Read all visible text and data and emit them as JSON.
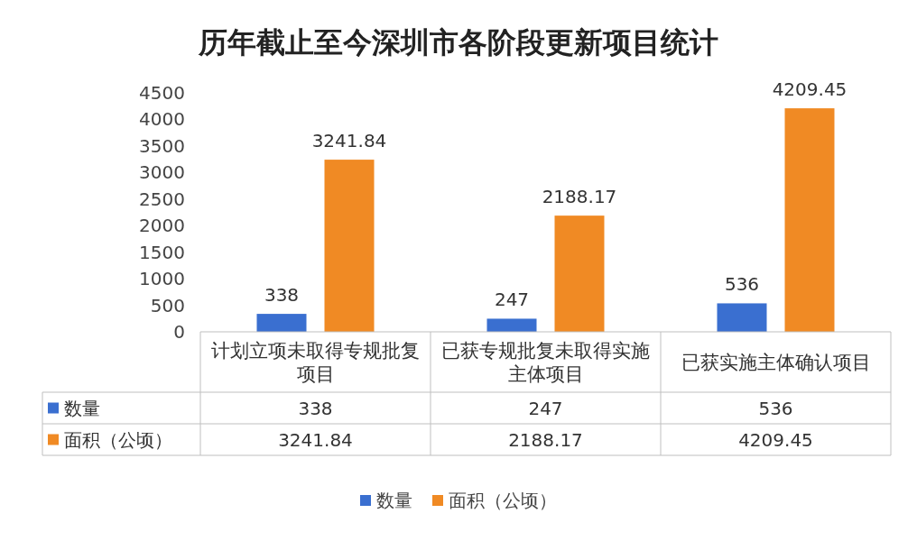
{
  "chart_data": {
    "type": "bar",
    "title": "历年截止至今深圳市各阶段更新项目统计",
    "categories": [
      "计划立项未取得专规批复项目",
      "已获专规批复未取得实施主体项目",
      "已获实施主体确认项目"
    ],
    "series": [
      {
        "name": "数量",
        "color": "#3a6fd0",
        "values": [
          338,
          247,
          536
        ],
        "value_labels": [
          "338",
          "247",
          "536"
        ]
      },
      {
        "name": "面积（公顷）",
        "color": "#f08a24",
        "values": [
          3241.84,
          2188.17,
          4209.45
        ],
        "value_labels": [
          "3241.84",
          "2188.17",
          "4209.45"
        ]
      }
    ],
    "ylim": [
      0,
      4500
    ],
    "yticks": [
      0,
      500,
      1000,
      1500,
      2000,
      2500,
      3000,
      3500,
      4000,
      4500
    ],
    "annotations": [
      "338",
      "247",
      "536",
      "3241.84",
      "2188.17",
      "4209.45"
    ],
    "legend": "bottom"
  }
}
